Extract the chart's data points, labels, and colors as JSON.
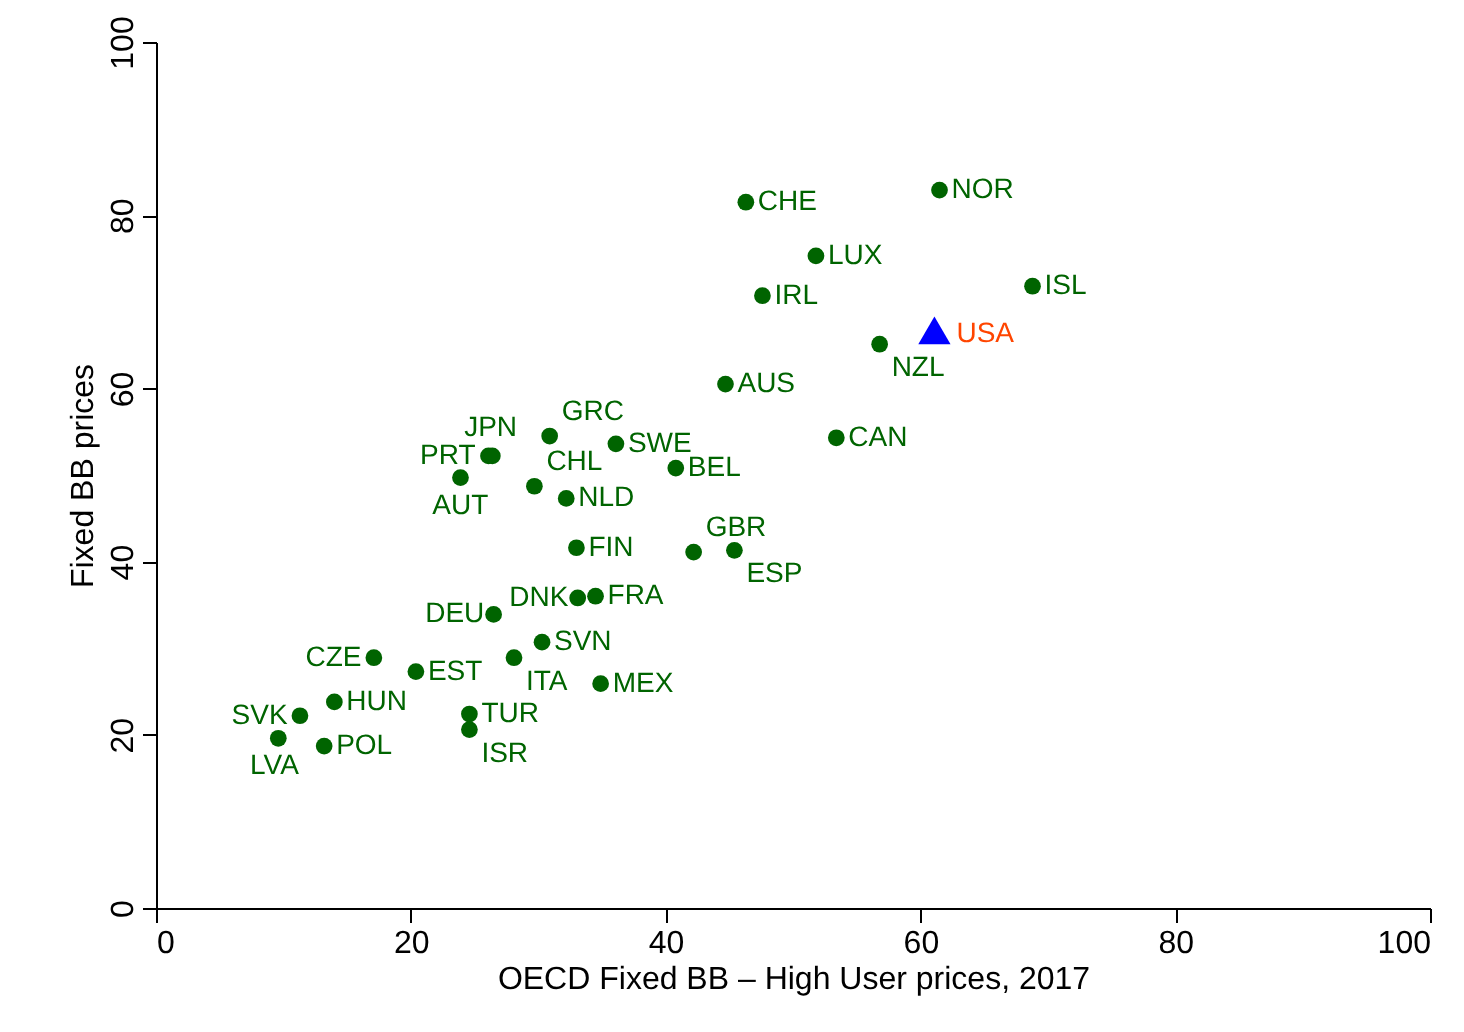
{
  "chart_data": {
    "type": "scatter",
    "xlabel": "OECD Fixed BB – High User prices, 2017",
    "ylabel": "Fixed BB prices",
    "xlim": [
      0,
      100
    ],
    "ylim": [
      0,
      100
    ],
    "xticks": [
      0,
      20,
      40,
      60,
      80,
      100
    ],
    "yticks": [
      0,
      20,
      40,
      60,
      80,
      100
    ],
    "grid": false,
    "series": [
      {
        "color": "#006400",
        "marker": "circle",
        "x": [
          46.3,
          61.5,
          51.8,
          68.8,
          47.6,
          56.8,
          44.7,
          53.4,
          30.9,
          36.1,
          26.1,
          26.4,
          40.8,
          23.9,
          29.7,
          32.2,
          33.0,
          42.2,
          45.4,
          34.5,
          33.1,
          26.5,
          30.3,
          17.1,
          28.1,
          20.4,
          34.9,
          14.0,
          11.3,
          24.6,
          24.6,
          9.6,
          13.2
        ],
        "values": [
          81.5,
          82.9,
          75.3,
          71.8,
          70.7,
          65.1,
          60.5,
          54.3,
          54.5,
          53.6,
          52.2,
          52.2,
          50.8,
          49.7,
          48.7,
          47.3,
          41.6,
          41.1,
          41.3,
          36.0,
          35.8,
          33.9,
          30.7,
          28.9,
          28.9,
          27.3,
          25.9,
          23.8,
          22.2,
          22.4,
          20.6,
          19.6,
          18.7
        ]
      },
      {
        "name": "USA",
        "color": "#0000ff",
        "marker": "triangle",
        "x": [
          61.1
        ],
        "values": [
          66.7
        ]
      }
    ],
    "annotations": [
      {
        "text": "CHE",
        "x": 46.3,
        "y": 81.5
      },
      {
        "text": "NOR",
        "x": 61.5,
        "y": 82.9
      },
      {
        "text": "LUX",
        "x": 51.8,
        "y": 75.3
      },
      {
        "text": "ISL",
        "x": 68.8,
        "y": 71.8
      },
      {
        "text": "IRL",
        "x": 47.6,
        "y": 70.7
      },
      {
        "text": "NZL",
        "x": 56.8,
        "y": 65.1
      },
      {
        "text": "AUS",
        "x": 44.7,
        "y": 60.5
      },
      {
        "text": "CAN",
        "x": 53.4,
        "y": 54.3
      },
      {
        "text": "GRC",
        "x": 30.9,
        "y": 54.5
      },
      {
        "text": "SWE",
        "x": 36.1,
        "y": 53.6
      },
      {
        "text": "PRT",
        "x": 26.1,
        "y": 52.2
      },
      {
        "text": "JPN",
        "x": 26.4,
        "y": 52.2
      },
      {
        "text": "BEL",
        "x": 40.8,
        "y": 50.8
      },
      {
        "text": "AUT",
        "x": 23.9,
        "y": 49.7
      },
      {
        "text": "CHL",
        "x": 29.7,
        "y": 48.7
      },
      {
        "text": "NLD",
        "x": 32.2,
        "y": 47.3
      },
      {
        "text": "FIN",
        "x": 33.0,
        "y": 41.6
      },
      {
        "text": "GBR",
        "x": 42.2,
        "y": 41.1
      },
      {
        "text": "ESP",
        "x": 45.4,
        "y": 41.3
      },
      {
        "text": "FRA",
        "x": 34.5,
        "y": 36.0
      },
      {
        "text": "DNK",
        "x": 33.1,
        "y": 35.8
      },
      {
        "text": "DEU",
        "x": 26.5,
        "y": 33.9
      },
      {
        "text": "SVN",
        "x": 30.3,
        "y": 30.7
      },
      {
        "text": "CZE",
        "x": 17.1,
        "y": 28.9
      },
      {
        "text": "ITA",
        "x": 28.1,
        "y": 28.9
      },
      {
        "text": "EST",
        "x": 20.4,
        "y": 27.3
      },
      {
        "text": "MEX",
        "x": 34.9,
        "y": 25.9
      },
      {
        "text": "HUN",
        "x": 14.0,
        "y": 23.8
      },
      {
        "text": "SVK",
        "x": 11.3,
        "y": 22.2
      },
      {
        "text": "TUR",
        "x": 24.6,
        "y": 22.4
      },
      {
        "text": "ISR",
        "x": 24.6,
        "y": 20.6
      },
      {
        "text": "LVA",
        "x": 9.6,
        "y": 19.6
      },
      {
        "text": "POL",
        "x": 13.2,
        "y": 18.7
      }
    ]
  }
}
